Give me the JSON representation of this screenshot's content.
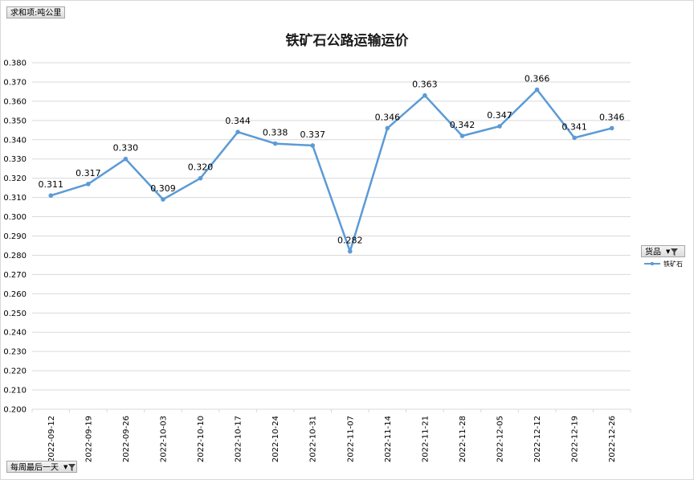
{
  "field_buttons": {
    "values_field": "求和项:吨公里",
    "axis_field": "每周最后一天",
    "legend_field": "货品"
  },
  "colors": {
    "series": "#5b9bd5",
    "grid": "#d9d9d9"
  },
  "icons": {
    "filter": "funnel-icon",
    "dropdown": "dropdown-arrow-icon"
  },
  "chart_data": {
    "type": "line",
    "title": "铁矿石公路运输运价",
    "xlabel": "",
    "ylabel": "",
    "ylim": [
      0.2,
      0.38
    ],
    "ytick_step": 0.01,
    "ytick_labels": [
      "0.200",
      "0.210",
      "0.220",
      "0.230",
      "0.240",
      "0.250",
      "0.260",
      "0.270",
      "0.280",
      "0.290",
      "0.300",
      "0.310",
      "0.320",
      "0.330",
      "0.340",
      "0.350",
      "0.360",
      "0.370",
      "0.380"
    ],
    "grid": true,
    "legend_position": "right",
    "categories": [
      "2022-09-12",
      "2022-09-19",
      "2022-09-26",
      "2022-10-03",
      "2022-10-10",
      "2022-10-17",
      "2022-10-24",
      "2022-10-31",
      "2022-11-07",
      "2022-11-14",
      "2022-11-21",
      "2022-11-28",
      "2022-12-05",
      "2022-12-12",
      "2022-12-19",
      "2022-12-26"
    ],
    "series": [
      {
        "name": "铁矿石",
        "values": [
          0.311,
          0.317,
          0.33,
          0.309,
          0.32,
          0.344,
          0.338,
          0.337,
          0.282,
          0.346,
          0.363,
          0.342,
          0.347,
          0.366,
          0.341,
          0.346
        ],
        "data_labels": [
          "0.311",
          "0.317",
          "0.330",
          "0.309",
          "0.320",
          "0.344",
          "0.338",
          "0.337",
          "0.282",
          "0.346",
          "0.363",
          "0.342",
          "0.347",
          "0.366",
          "0.341",
          "0.346"
        ]
      }
    ]
  }
}
